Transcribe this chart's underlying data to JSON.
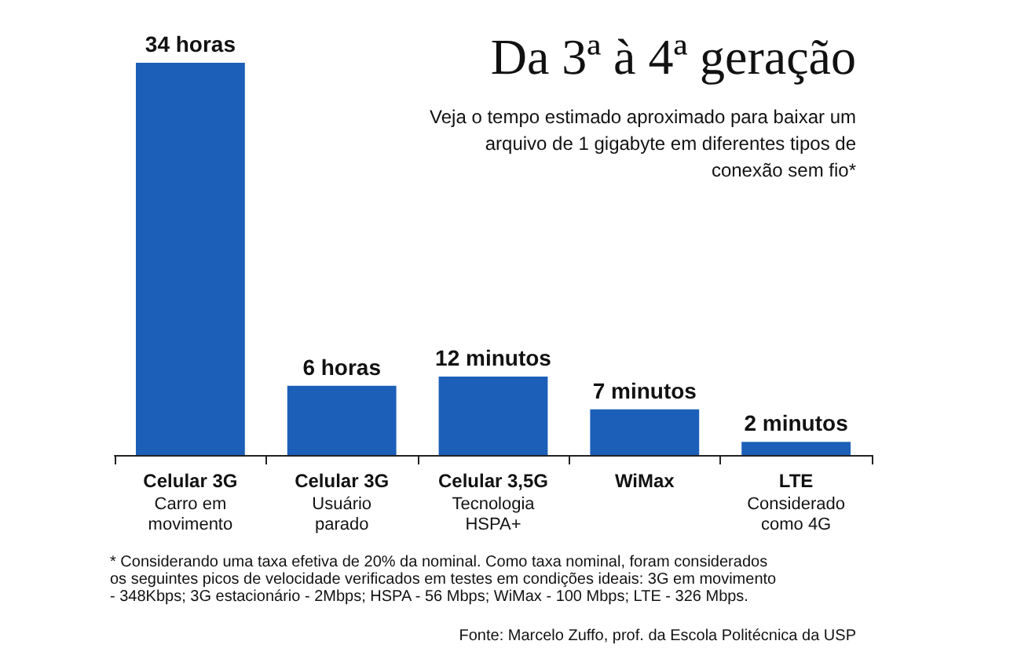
{
  "chart_data": {
    "type": "bar",
    "title": "Da 3ª à 4ª geração",
    "subtitle": "Veja o tempo estimado aproximado para baixar um\narquivo de 1 gigabyte em diferentes tipos de\nconexão sem fio*",
    "categories": [
      "Celular 3G\nCarro em\nmovimento",
      "Celular 3G\nUsuário\nparado",
      "Celular 3,5G\nTecnologia\nHSPA+",
      "WiMax",
      "LTE\nConsiderado\ncomo 4G"
    ],
    "series": [
      {
        "color": "#1c5fb8",
        "values": [
          34,
          6,
          null,
          null,
          null
        ],
        "value_labels": [
          "34 horas",
          "6 horas",
          null,
          null,
          null
        ]
      },
      {
        "color": "#1c5fb8",
        "axis": "y2",
        "values": [
          null,
          null,
          12,
          7,
          2
        ],
        "value_labels": [
          null,
          null,
          "12 minutos",
          "7 minutos",
          "2 minutos"
        ]
      }
    ],
    "ylim": [
      0,
      34
    ],
    "y2lim": [
      0,
      60
    ],
    "tick_labels": "x",
    "annotations": [
      "* Considerando uma taxa efetiva de 20% da nominal. Como taxa nominal, foram considerados\nos seguintes picos de velocidade verificados em testes em condições ideais: 3G em movimento\n- 348Kbps; 3G estacionário - 2Mbps; HSPA - 56 Mbps; WiMax - 100 Mbps; LTE - 326 Mbps.",
      "Fonte: Marcelo Zuffo, prof. da Escola Politécnica da USP"
    ]
  }
}
